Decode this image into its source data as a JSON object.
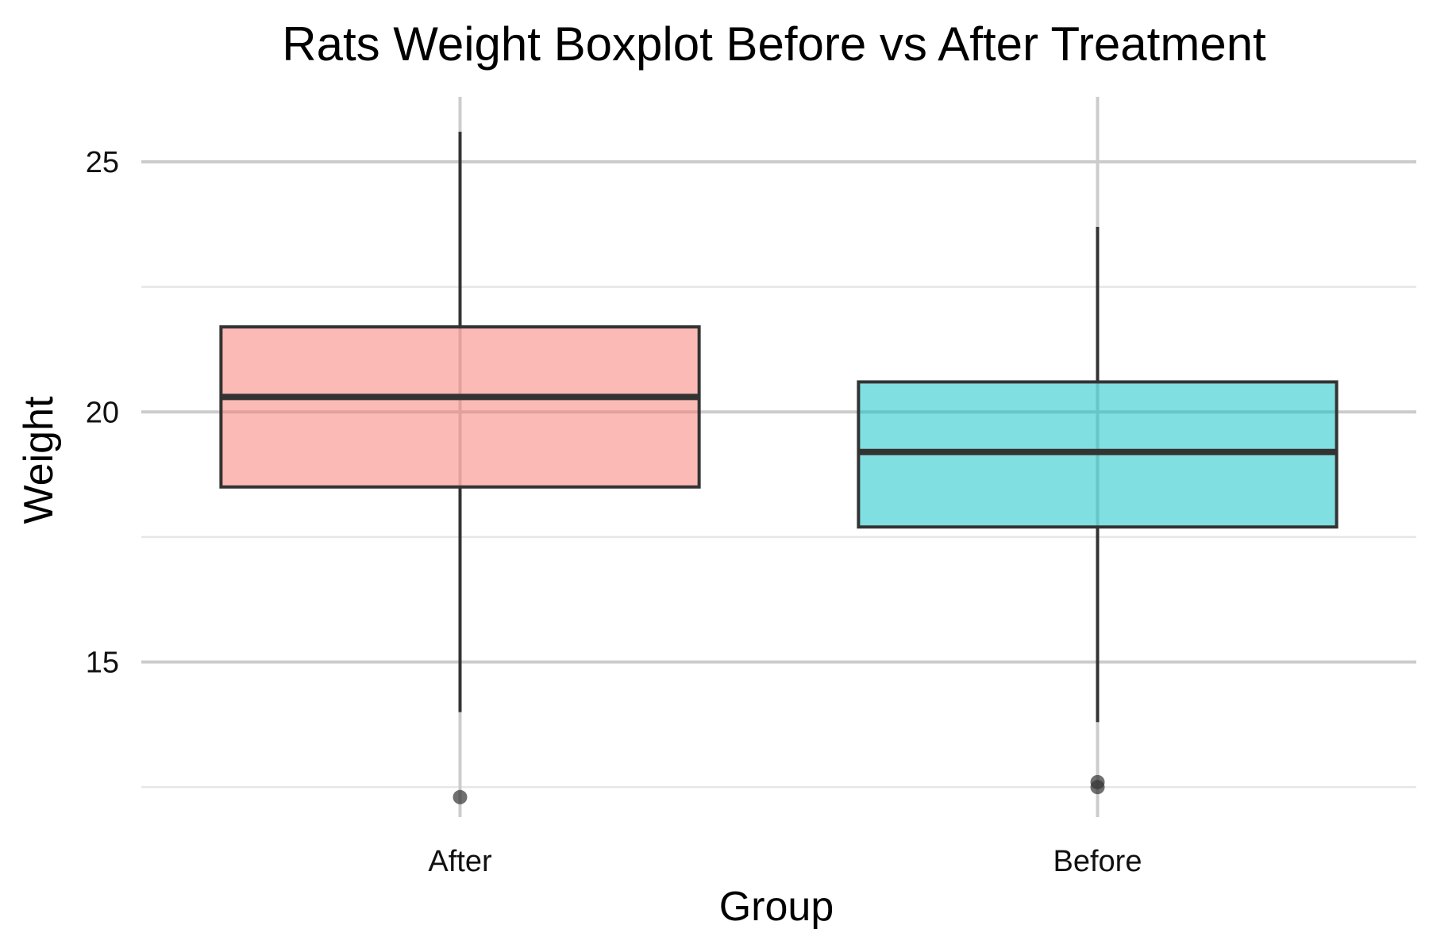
{
  "chart_data": {
    "type": "box",
    "title": "Rats Weight Boxplot Before vs After Treatment",
    "xlabel": "Group",
    "ylabel": "Weight",
    "ylim": [
      11.9,
      26.3
    ],
    "yticks": [
      15,
      20,
      25
    ],
    "yminor": [
      12.5,
      17.5,
      22.5
    ],
    "grid": true,
    "legend": "none",
    "categories": [
      "After",
      "Before"
    ],
    "series": [
      {
        "category": "After",
        "color": "#f8766d",
        "whisker_low": 14.0,
        "q1": 18.5,
        "median": 20.3,
        "q3": 21.7,
        "whisker_high": 25.6,
        "outliers": [
          12.3
        ]
      },
      {
        "category": "Before",
        "color": "#00bfc4",
        "whisker_low": 13.8,
        "q1": 17.7,
        "median": 19.2,
        "q3": 20.6,
        "whisker_high": 23.7,
        "outliers": [
          12.6,
          12.5
        ]
      }
    ]
  }
}
